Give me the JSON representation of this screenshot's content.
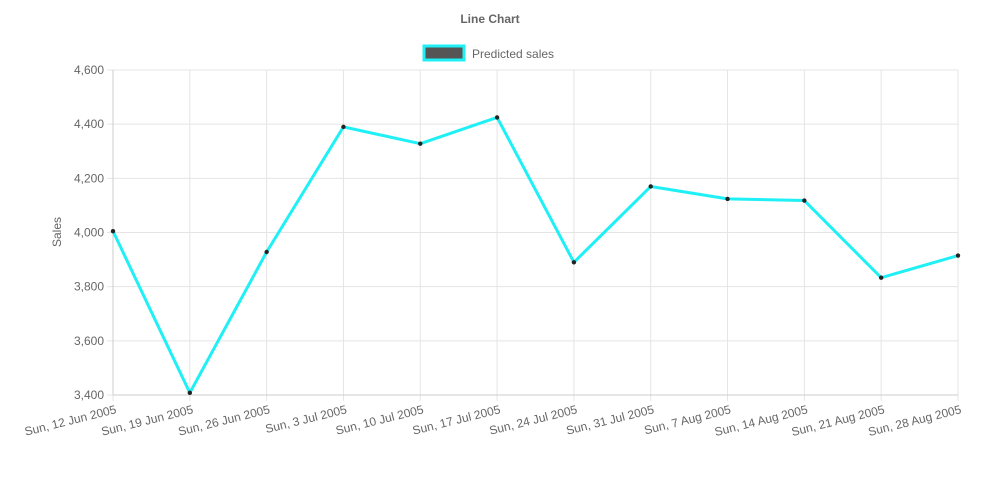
{
  "chart_data": {
    "type": "line",
    "title": "Line Chart",
    "xlabel": "",
    "ylabel": "Sales",
    "ylim": [
      3400,
      4600
    ],
    "y_ticks": [
      "3,400",
      "3,600",
      "3,800",
      "4,000",
      "4,200",
      "4,400",
      "4,600"
    ],
    "y_tick_values": [
      3400,
      3600,
      3800,
      4000,
      4200,
      4400,
      4600
    ],
    "grid": true,
    "legend_position": "top",
    "categories": [
      "Sun, 12 Jun 2005",
      "Sun, 19 Jun 2005",
      "Sun, 26 Jun 2005",
      "Sun, 3 Jul 2005",
      "Sun, 10 Jul 2005",
      "Sun, 17 Jul 2005",
      "Sun, 24 Jul 2005",
      "Sun, 31 Jul 2005",
      "Sun, 7 Aug 2005",
      "Sun, 14 Aug 2005",
      "Sun, 21 Aug 2005",
      "Sun, 28 Aug 2005"
    ],
    "series": [
      {
        "name": "Predicted sales",
        "values": [
          4005,
          3408,
          3928,
          4390,
          4328,
          4425,
          3890,
          4170,
          4124,
          4118,
          3833,
          3915
        ],
        "line_color": "#1ff0f5",
        "legend_fill": "#555555"
      }
    ]
  }
}
